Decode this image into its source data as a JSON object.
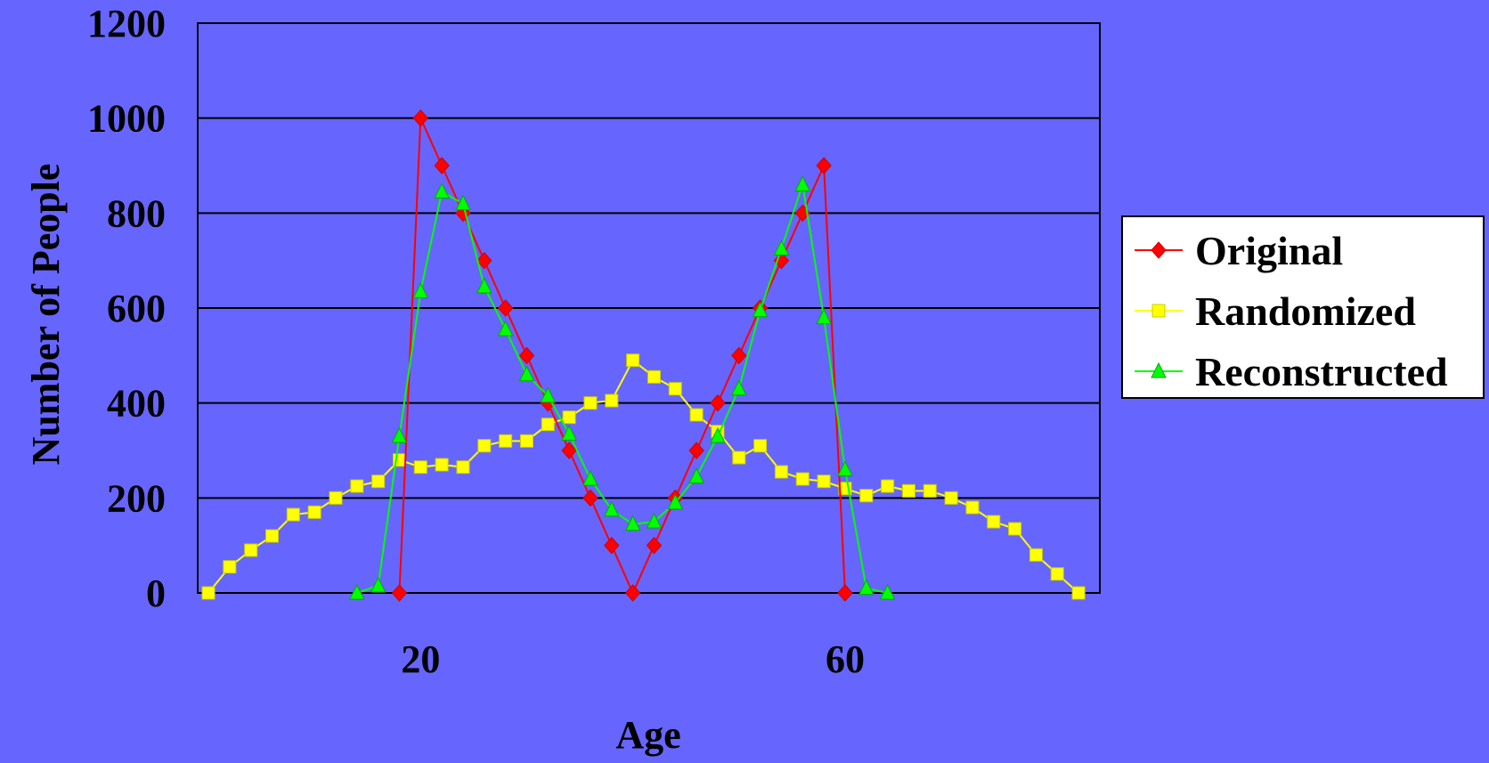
{
  "chart_data": {
    "type": "line",
    "title": "",
    "xlabel": "Age",
    "ylabel": "Number of People",
    "ylim": [
      0,
      1200
    ],
    "yticks": [
      "0",
      "200",
      "400",
      "600",
      "800",
      "1000",
      "1200"
    ],
    "x_tick_labels": [
      {
        "x": 20,
        "label": "20"
      },
      {
        "x": 60,
        "label": "60"
      }
    ],
    "xlim": [
      0,
      83
    ],
    "grid": "horizontal",
    "legend_position": "right",
    "series": [
      {
        "name": "Original",
        "color": "#FF0000",
        "marker": "diamond",
        "x": [
          18,
          20,
          22,
          24,
          26,
          28,
          30,
          32,
          34,
          36,
          38,
          40,
          42,
          44,
          46,
          48,
          50,
          52,
          54,
          56,
          58,
          60
        ],
        "y": [
          0,
          1000,
          900,
          800,
          700,
          600,
          500,
          400,
          300,
          200,
          100,
          0,
          100,
          200,
          300,
          400,
          500,
          600,
          700,
          800,
          900,
          0
        ]
      },
      {
        "name": "Randomized",
        "color": "#FFFF00",
        "marker": "square",
        "x": [
          0,
          2,
          4,
          6,
          8,
          10,
          12,
          14,
          16,
          18,
          20,
          22,
          24,
          26,
          28,
          30,
          32,
          34,
          36,
          38,
          40,
          42,
          44,
          46,
          48,
          50,
          52,
          54,
          56,
          58,
          60,
          62,
          64,
          66,
          68,
          70,
          72,
          74,
          76,
          78,
          80,
          82
        ],
        "y": [
          0,
          55,
          90,
          120,
          165,
          170,
          200,
          225,
          235,
          280,
          265,
          270,
          265,
          310,
          320,
          320,
          355,
          370,
          400,
          405,
          490,
          455,
          430,
          375,
          340,
          285,
          310,
          255,
          240,
          235,
          220,
          205,
          225,
          215,
          215,
          200,
          180,
          150,
          135,
          80,
          40,
          0
        ]
      },
      {
        "name": "Reconstructed",
        "color": "#00FF00",
        "marker": "triangle",
        "x": [
          14,
          16,
          18,
          20,
          22,
          24,
          26,
          28,
          30,
          32,
          34,
          36,
          38,
          40,
          42,
          44,
          46,
          48,
          50,
          52,
          54,
          56,
          58,
          60,
          62,
          64
        ],
        "y": [
          0,
          15,
          330,
          635,
          845,
          820,
          645,
          555,
          460,
          415,
          335,
          240,
          175,
          145,
          150,
          190,
          245,
          330,
          430,
          595,
          725,
          860,
          580,
          260,
          10,
          0
        ]
      }
    ]
  }
}
